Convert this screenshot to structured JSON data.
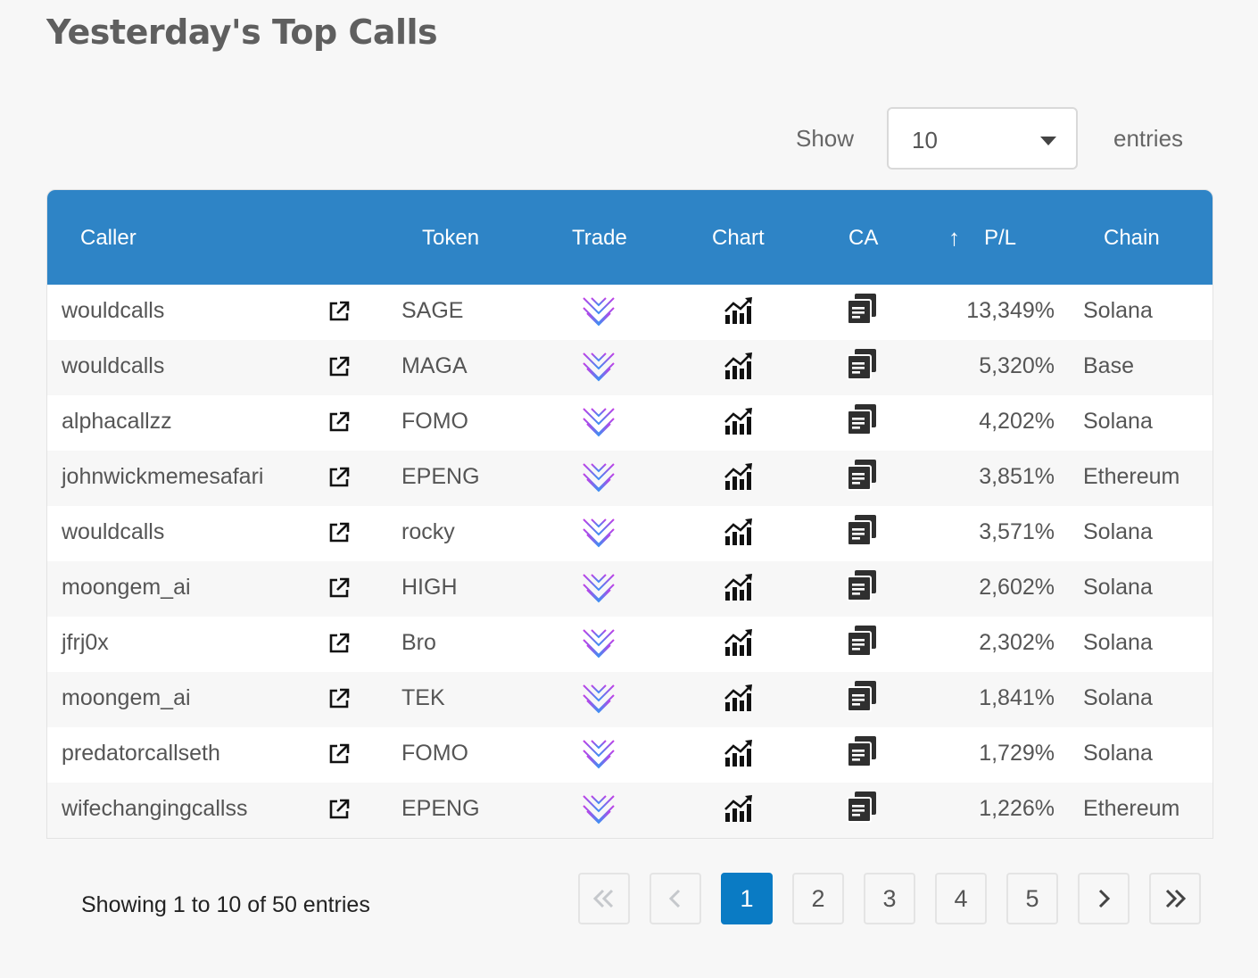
{
  "page": {
    "title": "Yesterday's Top Calls"
  },
  "length_control": {
    "show_label": "Show",
    "selected": "10",
    "entries_label": "entries"
  },
  "table": {
    "headers": {
      "caller": "Caller",
      "token": "Token",
      "trade": "Trade",
      "chart": "Chart",
      "ca": "CA",
      "pl": "P/L",
      "chain": "Chain"
    },
    "sort": {
      "column": "pl",
      "indicator": "↑"
    },
    "rows": [
      {
        "caller": "wouldcalls",
        "token": "SAGE",
        "pl": "13,349%",
        "chain": "Solana"
      },
      {
        "caller": "wouldcalls",
        "token": "MAGA",
        "pl": "5,320%",
        "chain": "Base"
      },
      {
        "caller": "alphacallzz",
        "token": "FOMO",
        "pl": "4,202%",
        "chain": "Solana"
      },
      {
        "caller": "johnwickmemesafari",
        "token": "EPENG",
        "pl": "3,851%",
        "chain": "Ethereum"
      },
      {
        "caller": "wouldcalls",
        "token": "rocky",
        "pl": "3,571%",
        "chain": "Solana"
      },
      {
        "caller": "moongem_ai",
        "token": "HIGH",
        "pl": "2,602%",
        "chain": "Solana"
      },
      {
        "caller": "jfrj0x",
        "token": "Bro",
        "pl": "2,302%",
        "chain": "Solana"
      },
      {
        "caller": "moongem_ai",
        "token": "TEK",
        "pl": "1,841%",
        "chain": "Solana"
      },
      {
        "caller": "predatorcallseth",
        "token": "FOMO",
        "pl": "1,729%",
        "chain": "Solana"
      },
      {
        "caller": "wifechangingcallss",
        "token": "EPENG",
        "pl": "1,226%",
        "chain": "Ethereum"
      }
    ],
    "row_icons": {
      "caller_link": "external-link-icon",
      "trade": "trade-logo-icon",
      "chart": "chart-icon",
      "ca": "copy-icon"
    }
  },
  "footer": {
    "info": "Showing 1 to 10 of 50 entries",
    "pages": [
      "1",
      "2",
      "3",
      "4",
      "5"
    ],
    "current_page": "1",
    "nav_icons": [
      "first-page-icon",
      "previous-page-icon",
      "next-page-icon",
      "last-page-icon"
    ]
  },
  "colors": {
    "header_bg": "#2e84c6",
    "active_page": "#0a7bc4",
    "logo_purple": "#b446e8",
    "logo_blue": "#4a8bf0"
  }
}
